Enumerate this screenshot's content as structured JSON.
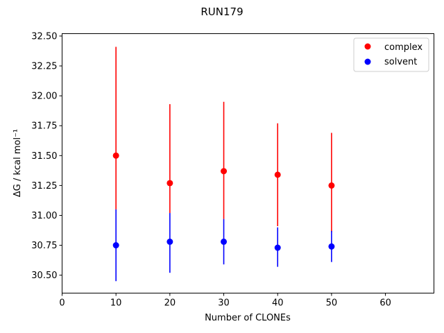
{
  "chart_data": {
    "type": "scatter",
    "title": "RUN179",
    "xlabel": "Number of CLONEs",
    "ylabel": "ΔG / kcal mol⁻¹",
    "xlim": [
      0,
      69
    ],
    "ylim": [
      30.35,
      32.52
    ],
    "xticks": [
      0,
      10,
      20,
      30,
      40,
      50,
      60
    ],
    "yticks": [
      30.5,
      30.75,
      31.0,
      31.25,
      31.5,
      31.75,
      32.0,
      32.25,
      32.5
    ],
    "ytick_labels": [
      "30.50",
      "30.75",
      "31.00",
      "31.25",
      "31.50",
      "31.75",
      "32.00",
      "32.25",
      "32.50"
    ],
    "grid": false,
    "legend_position": "top-right",
    "series": [
      {
        "name": "complex",
        "color": "#ff0000",
        "x": [
          10,
          20,
          30,
          40,
          50
        ],
        "y": [
          31.5,
          31.27,
          31.37,
          31.34,
          31.25
        ],
        "yerr_low": [
          31.05,
          31.02,
          30.97,
          30.91,
          30.86
        ],
        "yerr_high": [
          32.41,
          31.93,
          31.95,
          31.77,
          31.69
        ]
      },
      {
        "name": "solvent",
        "color": "#0000ff",
        "x": [
          10,
          20,
          30,
          40,
          50
        ],
        "y": [
          30.75,
          30.78,
          30.78,
          30.73,
          30.74
        ],
        "yerr_low": [
          30.45,
          30.52,
          30.59,
          30.57,
          30.61
        ],
        "yerr_high": [
          31.05,
          31.02,
          30.97,
          30.9,
          30.87
        ]
      }
    ]
  }
}
